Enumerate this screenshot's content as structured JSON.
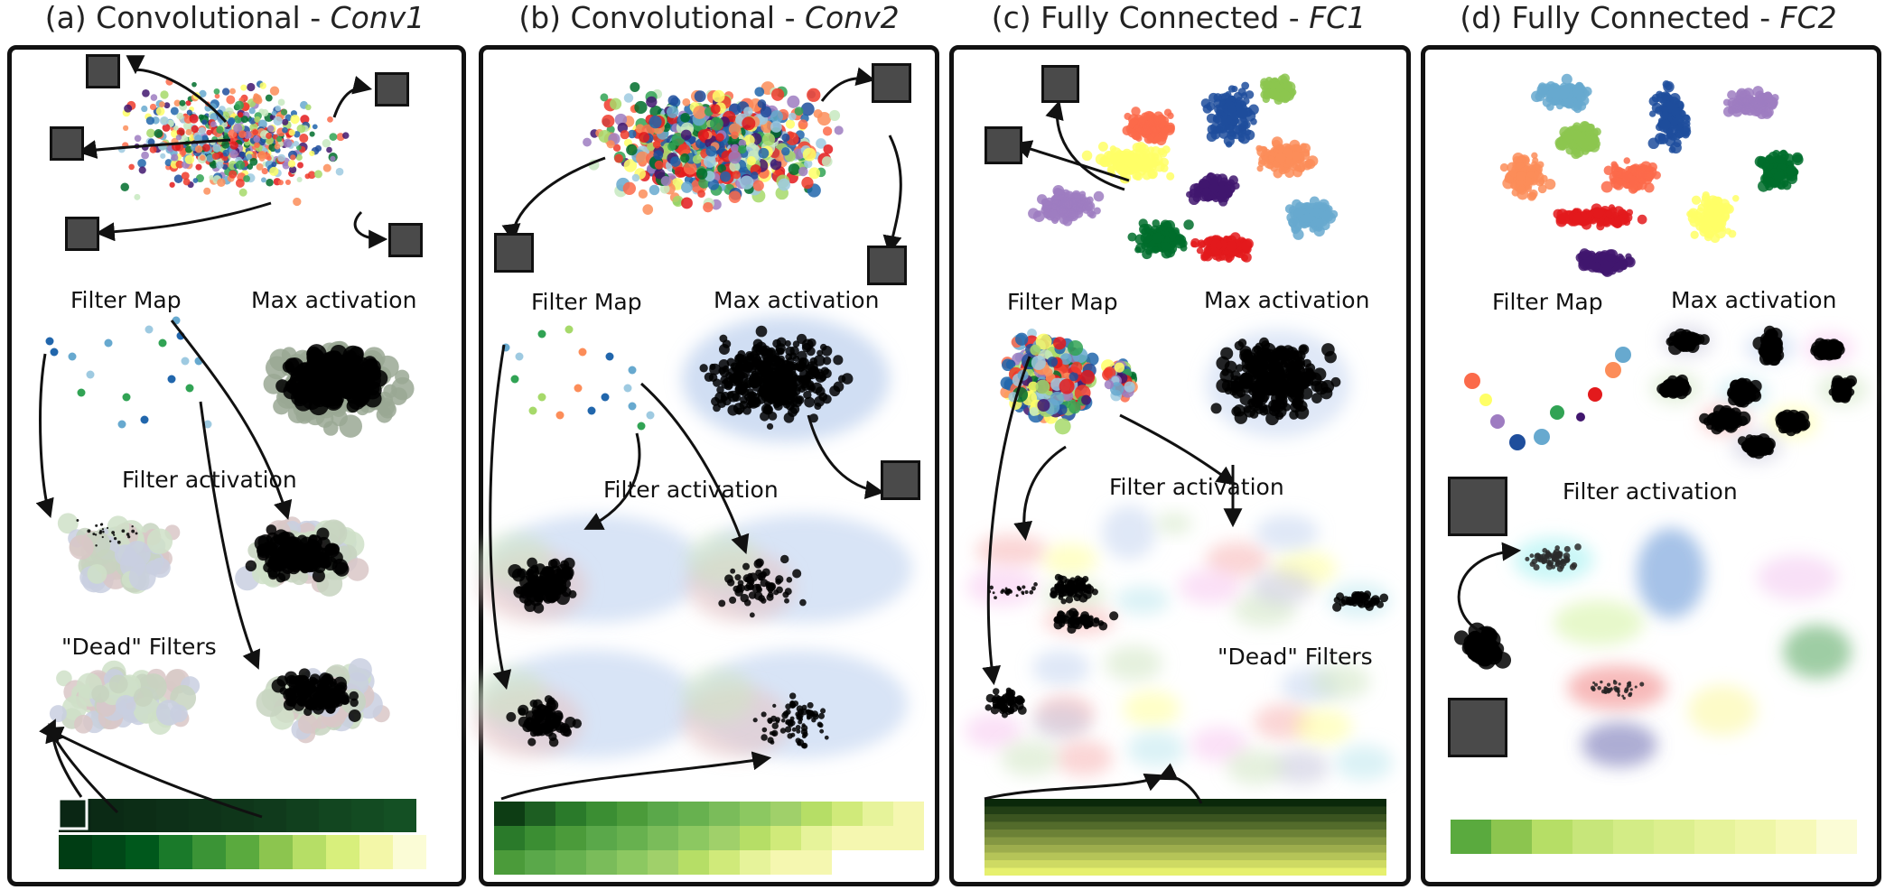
{
  "panels": [
    {
      "prefix": "(a) Convolutional - ",
      "name": "Conv1",
      "filter_map": "Filter Map",
      "max_activation": "Max activation",
      "filter_activation": "Filter activation",
      "dead_filters": "\"Dead\" Filters"
    },
    {
      "prefix": "(b) Convolutional - ",
      "name": "Conv2",
      "filter_map": "Filter Map",
      "max_activation": "Max activation",
      "filter_activation": "Filter activation"
    },
    {
      "prefix": "(c) Fully Connected - ",
      "name": "FC1",
      "filter_map": "Filter Map",
      "max_activation": "Max activation",
      "filter_activation": "Filter activation",
      "dead_filters": "\"Dead\" Filters"
    },
    {
      "prefix": "(d) Fully Connected - ",
      "name": "FC2",
      "filter_map": "Filter Map",
      "max_activation": "Max activation",
      "filter_activation": "Filter activation"
    }
  ],
  "colors": {
    "border": "#111111",
    "digit_palette": [
      "#2166ac",
      "#67a9cf",
      "#9ecae1",
      "#31a354",
      "#a6d96a",
      "#fc8d59",
      "#ef3b2c",
      "#ffff66",
      "#9e7cc1",
      "#41166e",
      "#006d2c",
      "#e31a1c",
      "#1f4e9c",
      "#fb6a4a",
      "#c7e9c0"
    ],
    "greens": [
      "#00260f",
      "#003d14",
      "#00581c",
      "#1a7a2a",
      "#3b9436",
      "#5aaa3e",
      "#8cc54f",
      "#b6de66",
      "#d8ef7c",
      "#f3f7a8",
      "#fbfcd6"
    ]
  }
}
